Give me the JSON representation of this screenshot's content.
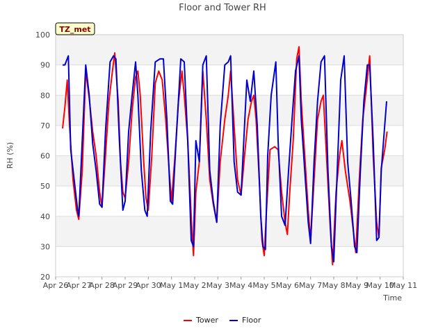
{
  "chart_data": {
    "type": "line",
    "title": "Floor and Tower RH",
    "xlabel": "Time",
    "ylabel": "RH (%)",
    "badge": "TZ_met",
    "ylim": [
      20,
      100
    ],
    "yticks": [
      20,
      30,
      40,
      50,
      60,
      70,
      80,
      90,
      100
    ],
    "xlim": [
      0,
      15
    ],
    "xticks": [
      {
        "x": 0,
        "label": "Apr 26"
      },
      {
        "x": 1,
        "label": "Apr 27"
      },
      {
        "x": 2,
        "label": "Apr 28"
      },
      {
        "x": 3,
        "label": "Apr 29"
      },
      {
        "x": 4,
        "label": "Apr 30"
      },
      {
        "x": 5,
        "label": "May 1"
      },
      {
        "x": 6,
        "label": "May 2"
      },
      {
        "x": 7,
        "label": "May 3"
      },
      {
        "x": 8,
        "label": "May 4"
      },
      {
        "x": 9,
        "label": "May 5"
      },
      {
        "x": 10,
        "label": "May 6"
      },
      {
        "x": 11,
        "label": "May 7"
      },
      {
        "x": 12,
        "label": "May 8"
      },
      {
        "x": 13,
        "label": "May 9"
      },
      {
        "x": 14,
        "label": "May 10"
      },
      {
        "x": 15,
        "label": "May 11"
      }
    ],
    "grid": true,
    "legend_position": "bottom-center",
    "series": [
      {
        "name": "Tower",
        "color": "#ff0000",
        "points": [
          [
            0.3,
            69
          ],
          [
            0.4,
            76
          ],
          [
            0.5,
            85
          ],
          [
            0.6,
            70
          ],
          [
            0.75,
            52
          ],
          [
            0.9,
            42
          ],
          [
            1.0,
            39
          ],
          [
            1.15,
            55
          ],
          [
            1.3,
            88
          ],
          [
            1.45,
            79
          ],
          [
            1.6,
            68
          ],
          [
            1.75,
            60
          ],
          [
            1.9,
            48
          ],
          [
            2.0,
            43
          ],
          [
            2.15,
            60
          ],
          [
            2.3,
            78
          ],
          [
            2.45,
            88
          ],
          [
            2.55,
            94
          ],
          [
            2.7,
            78
          ],
          [
            2.8,
            58
          ],
          [
            2.9,
            48
          ],
          [
            3.0,
            46
          ],
          [
            3.15,
            58
          ],
          [
            3.3,
            75
          ],
          [
            3.45,
            86
          ],
          [
            3.55,
            88
          ],
          [
            3.65,
            80
          ],
          [
            3.8,
            58
          ],
          [
            3.9,
            46
          ],
          [
            4.0,
            42
          ],
          [
            4.15,
            60
          ],
          [
            4.3,
            84
          ],
          [
            4.45,
            88
          ],
          [
            4.6,
            85
          ],
          [
            4.75,
            72
          ],
          [
            4.9,
            55
          ],
          [
            5.0,
            45
          ],
          [
            5.15,
            60
          ],
          [
            5.3,
            78
          ],
          [
            5.45,
            88
          ],
          [
            5.55,
            80
          ],
          [
            5.7,
            65
          ],
          [
            5.85,
            40
          ],
          [
            5.95,
            27
          ],
          [
            6.05,
            48
          ],
          [
            6.2,
            58
          ],
          [
            6.35,
            88
          ],
          [
            6.5,
            72
          ],
          [
            6.65,
            52
          ],
          [
            6.8,
            44
          ],
          [
            6.95,
            38
          ],
          [
            7.1,
            58
          ],
          [
            7.3,
            72
          ],
          [
            7.45,
            80
          ],
          [
            7.55,
            88
          ],
          [
            7.7,
            70
          ],
          [
            7.85,
            52
          ],
          [
            8.0,
            47
          ],
          [
            8.15,
            60
          ],
          [
            8.3,
            72
          ],
          [
            8.45,
            78
          ],
          [
            8.55,
            80
          ],
          [
            8.65,
            72
          ],
          [
            8.8,
            50
          ],
          [
            8.9,
            32
          ],
          [
            9.0,
            27
          ],
          [
            9.1,
            42
          ],
          [
            9.25,
            62
          ],
          [
            9.45,
            63
          ],
          [
            9.6,
            62
          ],
          [
            9.75,
            48
          ],
          [
            9.9,
            38
          ],
          [
            10.0,
            34
          ],
          [
            10.1,
            48
          ],
          [
            10.25,
            65
          ],
          [
            10.4,
            92
          ],
          [
            10.5,
            96
          ],
          [
            10.6,
            78
          ],
          [
            10.75,
            60
          ],
          [
            10.9,
            42
          ],
          [
            11.0,
            32
          ],
          [
            11.15,
            52
          ],
          [
            11.3,
            72
          ],
          [
            11.45,
            78
          ],
          [
            11.55,
            80
          ],
          [
            11.7,
            58
          ],
          [
            11.85,
            36
          ],
          [
            11.95,
            24
          ],
          [
            12.1,
            48
          ],
          [
            12.25,
            60
          ],
          [
            12.35,
            65
          ],
          [
            12.5,
            55
          ],
          [
            12.7,
            45
          ],
          [
            12.85,
            35
          ],
          [
            12.95,
            28
          ],
          [
            13.1,
            52
          ],
          [
            13.25,
            72
          ],
          [
            13.4,
            82
          ],
          [
            13.55,
            93
          ],
          [
            13.7,
            60
          ],
          [
            13.85,
            38
          ],
          [
            13.95,
            33
          ],
          [
            14.05,
            56
          ],
          [
            14.2,
            62
          ],
          [
            14.3,
            68
          ]
        ]
      },
      {
        "name": "Floor",
        "color": "#0000cc",
        "points": [
          [
            0.3,
            90
          ],
          [
            0.4,
            90
          ],
          [
            0.55,
            93
          ],
          [
            0.65,
            62
          ],
          [
            0.8,
            52
          ],
          [
            0.95,
            42
          ],
          [
            1.0,
            40
          ],
          [
            1.15,
            65
          ],
          [
            1.3,
            90
          ],
          [
            1.45,
            80
          ],
          [
            1.6,
            64
          ],
          [
            1.75,
            55
          ],
          [
            1.9,
            44
          ],
          [
            2.0,
            43
          ],
          [
            2.15,
            68
          ],
          [
            2.35,
            91
          ],
          [
            2.5,
            93
          ],
          [
            2.6,
            92
          ],
          [
            2.75,
            65
          ],
          [
            2.9,
            42
          ],
          [
            3.0,
            45
          ],
          [
            3.15,
            68
          ],
          [
            3.3,
            80
          ],
          [
            3.45,
            91
          ],
          [
            3.55,
            80
          ],
          [
            3.7,
            55
          ],
          [
            3.85,
            42
          ],
          [
            3.95,
            40
          ],
          [
            4.1,
            68
          ],
          [
            4.3,
            91
          ],
          [
            4.5,
            92
          ],
          [
            4.65,
            92
          ],
          [
            4.8,
            72
          ],
          [
            4.95,
            45
          ],
          [
            5.05,
            44
          ],
          [
            5.2,
            65
          ],
          [
            5.4,
            92
          ],
          [
            5.55,
            91
          ],
          [
            5.7,
            65
          ],
          [
            5.85,
            32
          ],
          [
            5.95,
            30
          ],
          [
            6.05,
            65
          ],
          [
            6.2,
            58
          ],
          [
            6.35,
            90
          ],
          [
            6.5,
            93
          ],
          [
            6.65,
            55
          ],
          [
            6.8,
            45
          ],
          [
            6.95,
            38
          ],
          [
            7.1,
            70
          ],
          [
            7.3,
            90
          ],
          [
            7.45,
            91
          ],
          [
            7.55,
            93
          ],
          [
            7.7,
            58
          ],
          [
            7.85,
            48
          ],
          [
            8.0,
            47
          ],
          [
            8.15,
            70
          ],
          [
            8.25,
            85
          ],
          [
            8.4,
            78
          ],
          [
            8.55,
            88
          ],
          [
            8.7,
            70
          ],
          [
            8.85,
            40
          ],
          [
            8.95,
            30
          ],
          [
            9.05,
            29
          ],
          [
            9.15,
            60
          ],
          [
            9.3,
            80
          ],
          [
            9.5,
            91
          ],
          [
            9.6,
            65
          ],
          [
            9.75,
            40
          ],
          [
            9.9,
            37
          ],
          [
            10.05,
            55
          ],
          [
            10.2,
            72
          ],
          [
            10.35,
            88
          ],
          [
            10.5,
            93
          ],
          [
            10.6,
            72
          ],
          [
            10.75,
            55
          ],
          [
            10.9,
            38
          ],
          [
            11.0,
            31
          ],
          [
            11.15,
            58
          ],
          [
            11.3,
            78
          ],
          [
            11.45,
            91
          ],
          [
            11.6,
            93
          ],
          [
            11.75,
            55
          ],
          [
            11.9,
            30
          ],
          [
            12.0,
            25
          ],
          [
            12.15,
            55
          ],
          [
            12.3,
            85
          ],
          [
            12.45,
            93
          ],
          [
            12.6,
            58
          ],
          [
            12.75,
            45
          ],
          [
            12.9,
            30
          ],
          [
            13.0,
            28
          ],
          [
            13.15,
            55
          ],
          [
            13.3,
            78
          ],
          [
            13.45,
            90
          ],
          [
            13.55,
            90
          ],
          [
            13.7,
            65
          ],
          [
            13.85,
            32
          ],
          [
            13.95,
            33
          ],
          [
            14.05,
            55
          ],
          [
            14.2,
            70
          ],
          [
            14.28,
            78
          ]
        ]
      }
    ]
  }
}
